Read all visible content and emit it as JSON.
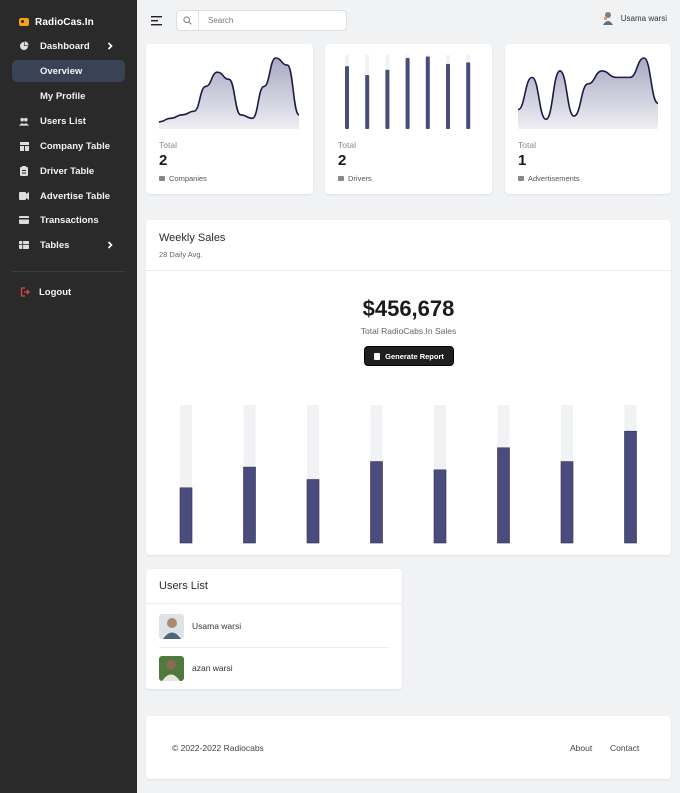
{
  "brand": {
    "name": "RadioCas.In"
  },
  "sidebar": {
    "items": [
      {
        "label": "Dashboard",
        "icon": "pie-chart-icon",
        "has_chevron": true
      },
      {
        "label": "Overview"
      },
      {
        "label": "My Profile"
      },
      {
        "label": "Users List",
        "icon": "users-icon"
      },
      {
        "label": "Company Table",
        "icon": "table-icon"
      },
      {
        "label": "Driver Table",
        "icon": "clipboard-icon"
      },
      {
        "label": "Advertise Table",
        "icon": "ad-icon"
      },
      {
        "label": "Transactions",
        "icon": "card-icon"
      },
      {
        "label": "Tables",
        "icon": "grid-icon",
        "has_chevron": true
      }
    ],
    "logout": "Logout"
  },
  "search": {
    "placeholder": "Search"
  },
  "user": {
    "name": "Usama warsi"
  },
  "stats": [
    {
      "label": "Total",
      "value": "2",
      "sub": "Companies",
      "chart_data": {
        "type": "area",
        "values": [
          1,
          1.5,
          2,
          2.5,
          6,
          8,
          7,
          2,
          1.5,
          6,
          10,
          9,
          2
        ]
      }
    },
    {
      "label": "Total",
      "value": "2",
      "sub": "Drivers",
      "chart_data": {
        "type": "bar",
        "values": [
          85,
          73,
          80,
          96,
          98,
          88,
          90
        ],
        "track_max": 100
      }
    },
    {
      "label": "Total",
      "value": "1",
      "sub": "Advertisements",
      "chart_data": {
        "type": "area",
        "values": [
          3,
          8,
          1.5,
          9,
          2,
          7,
          9,
          8,
          8,
          11,
          4
        ]
      }
    }
  ],
  "weekly_sales": {
    "title": "Weekly Sales",
    "subtitle": "28 Daily Avg.",
    "total": "$456,678",
    "total_label": "Total RadioCabs.In Sales",
    "button_label": "Generate Report",
    "chart_data": {
      "type": "bar",
      "values": [
        40,
        55,
        46,
        59,
        53,
        69,
        59,
        81
      ],
      "ylim": [
        0,
        100
      ],
      "colors": {
        "bar": "#4b4c7e",
        "track": "#f1f2f4"
      }
    }
  },
  "users_list": {
    "title": "Users List",
    "users": [
      {
        "name": "Usama warsi"
      },
      {
        "name": "azan warsi"
      }
    ]
  },
  "footer": {
    "copyright": "© 2022-2022 Radiocabs",
    "links": [
      "About",
      "Contact"
    ]
  },
  "colors": {
    "sidebar_bg": "#2a2a2a",
    "accent": "#4b4c7e",
    "logout_icon": "#e0404a",
    "brand_icon": "#f2a31b"
  }
}
